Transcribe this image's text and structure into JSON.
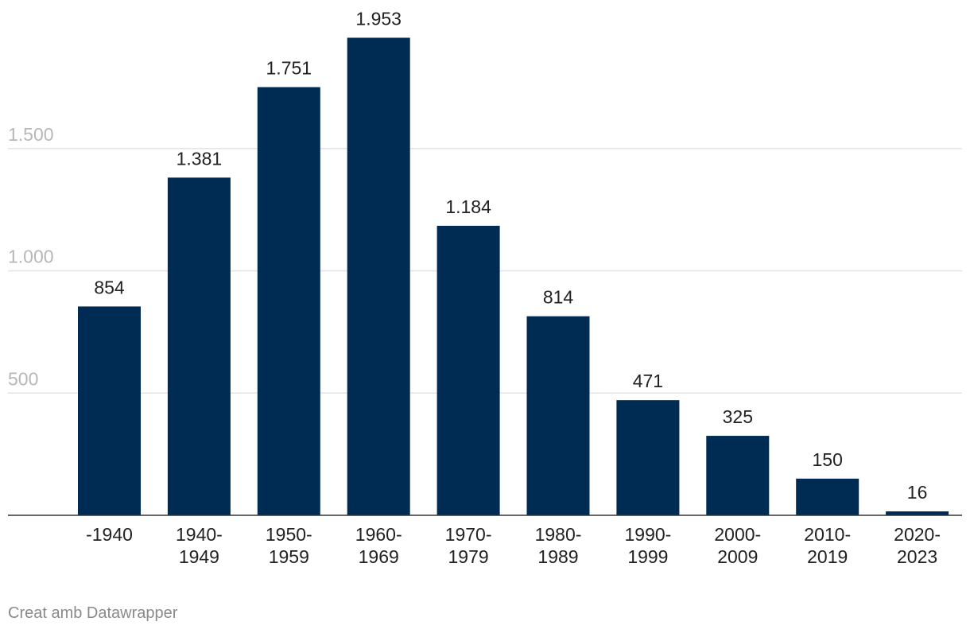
{
  "chart_data": {
    "type": "bar",
    "title": "",
    "xlabel": "",
    "ylabel": "",
    "ylim": [
      0,
      1953
    ],
    "grid": true,
    "yticks": [
      {
        "value": 500,
        "label": "500"
      },
      {
        "value": 1000,
        "label": "1.000"
      },
      {
        "value": 1500,
        "label": "1.500"
      }
    ],
    "categories": [
      [
        "-1940"
      ],
      [
        "1940-",
        "1949"
      ],
      [
        "1950-",
        "1959"
      ],
      [
        "1960-",
        "1969"
      ],
      [
        "1970-",
        "1979"
      ],
      [
        "1980-",
        "1989"
      ],
      [
        "1990-",
        "1999"
      ],
      [
        "2000-",
        "2009"
      ],
      [
        "2010-",
        "2019"
      ],
      [
        "2020-",
        "2023"
      ]
    ],
    "values": [
      854,
      1381,
      1751,
      1953,
      1184,
      814,
      471,
      325,
      150,
      16
    ],
    "value_labels": [
      "854",
      "1.381",
      "1.751",
      "1.953",
      "1.184",
      "814",
      "471",
      "325",
      "150",
      "16"
    ],
    "colors": {
      "bar": "#002b52"
    }
  },
  "footer": {
    "credit": "Creat amb Datawrapper"
  }
}
